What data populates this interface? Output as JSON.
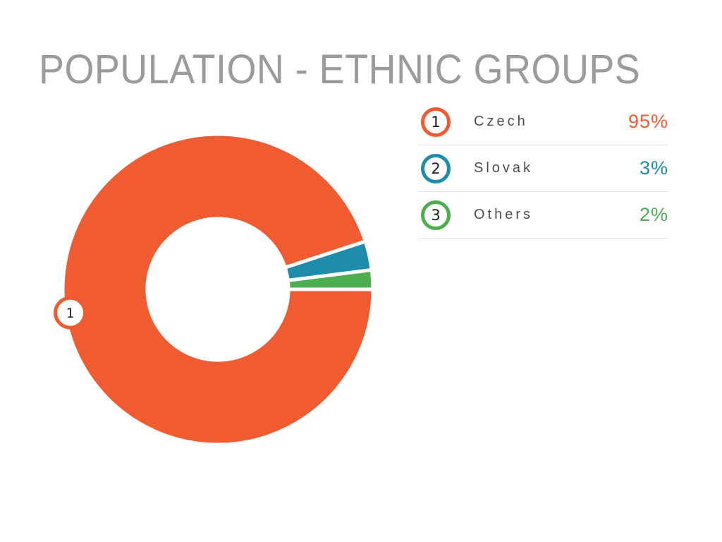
{
  "title": "POPULATION - ETHNIC GROUPS",
  "chart_data": {
    "type": "pie",
    "subtype": "donut",
    "title": "POPULATION - ETHNIC GROUPS",
    "categories": [
      "Czech",
      "Slovak",
      "Others"
    ],
    "values": [
      95,
      3,
      2
    ],
    "unit": "%",
    "colors": [
      "#F05B32",
      "#1E8CAB",
      "#4CAD51"
    ],
    "start_angle_deg": 0,
    "direction": "clockwise",
    "inner_radius_ratio": 0.455,
    "slice_gap_stroke": "#ffffff",
    "marker": {
      "label": "1",
      "slice_index": 0
    },
    "legend_position": "right"
  },
  "legend": {
    "items": [
      {
        "index": "1",
        "label": "Czech",
        "value": "95%",
        "color": "#F05B32"
      },
      {
        "index": "2",
        "label": "Slovak",
        "value": "3%",
        "color": "#1E8CAB"
      },
      {
        "index": "3",
        "label": "Others",
        "value": "2%",
        "color": "#4CAD51"
      }
    ]
  }
}
